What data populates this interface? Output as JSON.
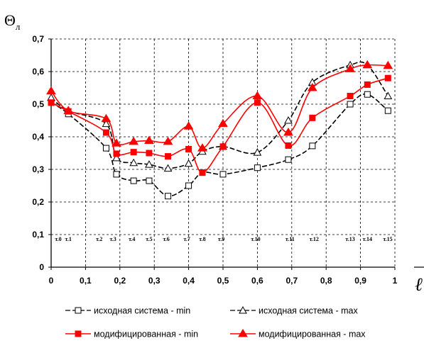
{
  "chart_data": {
    "type": "line",
    "ylabel_symbol": "Θ",
    "ylabel_subscript": "л",
    "xlabel": "ℓ",
    "xlim": [
      0,
      1
    ],
    "ylim": [
      0,
      0.7
    ],
    "grid": "dashed vertical and horizontal",
    "x_ticks": [
      "0",
      "0,1",
      "0,2",
      "0,3",
      "0,4",
      "0,5",
      "0,6",
      "0,7",
      "0,8",
      "0,9",
      "1"
    ],
    "y_ticks": [
      "0",
      "0,1",
      "0,2",
      "0,3",
      "0,4",
      "0,5",
      "0,6",
      "0,7"
    ],
    "point_labels": [
      {
        "text": "т.0",
        "x": 0.0
      },
      {
        "text": "т.1",
        "x": 0.05
      },
      {
        "text": "т.2",
        "x": 0.14
      },
      {
        "text": "т.3",
        "x": 0.18
      },
      {
        "text": "т.4",
        "x": 0.235
      },
      {
        "text": "т.5",
        "x": 0.285
      },
      {
        "text": "т.6",
        "x": 0.335
      },
      {
        "text": "т.7",
        "x": 0.395
      },
      {
        "text": "т.8",
        "x": 0.44
      },
      {
        "text": "т.9",
        "x": 0.495
      },
      {
        "text": "т.10",
        "x": 0.595
      },
      {
        "text": "т.11",
        "x": 0.695
      },
      {
        "text": "т.12",
        "x": 0.765
      },
      {
        "text": "т.13",
        "x": 0.87
      },
      {
        "text": "т.14",
        "x": 0.92
      },
      {
        "text": "т.15",
        "x": 0.98
      }
    ],
    "series": [
      {
        "name": "исходная система - min",
        "color": "#000000",
        "dashed": true,
        "marker": "open-square",
        "x": [
          0,
          0.05,
          0.16,
          0.19,
          0.24,
          0.285,
          0.34,
          0.4,
          0.44,
          0.5,
          0.6,
          0.69,
          0.76,
          0.87,
          0.92,
          0.98
        ],
        "y": [
          0.505,
          0.47,
          0.365,
          0.285,
          0.265,
          0.265,
          0.218,
          0.25,
          0.29,
          0.285,
          0.305,
          0.33,
          0.372,
          0.5,
          0.53,
          0.48
        ]
      },
      {
        "name": "исходная система - max",
        "color": "#000000",
        "dashed": true,
        "marker": "open-triangle",
        "x": [
          0,
          0.05,
          0.16,
          0.19,
          0.24,
          0.285,
          0.34,
          0.4,
          0.44,
          0.5,
          0.6,
          0.69,
          0.76,
          0.87,
          0.92,
          0.98
        ],
        "y": [
          0.52,
          0.48,
          0.44,
          0.335,
          0.32,
          0.315,
          0.303,
          0.318,
          0.355,
          0.37,
          0.352,
          0.45,
          0.567,
          0.62,
          0.62,
          0.525
        ]
      },
      {
        "name": "модифицированная - min",
        "color": "#ff0000",
        "dashed": false,
        "marker": "filled-square",
        "x": [
          0,
          0.05,
          0.16,
          0.19,
          0.24,
          0.285,
          0.34,
          0.4,
          0.44,
          0.5,
          0.6,
          0.69,
          0.76,
          0.87,
          0.92,
          0.98
        ],
        "y": [
          0.505,
          0.478,
          0.413,
          0.348,
          0.353,
          0.35,
          0.34,
          0.362,
          0.29,
          0.37,
          0.505,
          0.373,
          0.458,
          0.525,
          0.56,
          0.58
        ]
      },
      {
        "name": "модифицированная - max",
        "color": "#ff0000",
        "dashed": false,
        "marker": "filled-triangle",
        "x": [
          0,
          0.05,
          0.16,
          0.19,
          0.24,
          0.285,
          0.34,
          0.4,
          0.44,
          0.5,
          0.6,
          0.69,
          0.76,
          0.87,
          0.92,
          0.98
        ],
        "y": [
          0.54,
          0.48,
          0.455,
          0.38,
          0.385,
          0.388,
          0.385,
          0.432,
          0.365,
          0.44,
          0.525,
          0.413,
          0.55,
          0.608,
          0.62,
          0.618
        ]
      }
    ]
  }
}
